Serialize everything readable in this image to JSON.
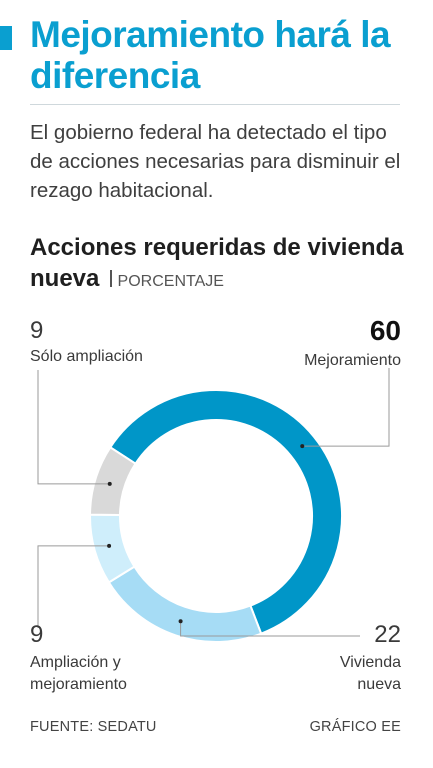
{
  "headline": "Mejoramiento hará la diferencia",
  "deck": "El gobierno federal ha detectado el tipo de acciones necesarias para disminuir el rezago habitacional.",
  "chart_title": "Acciones requeridas de vivienda nueva",
  "chart_unit": "PORCENTAJE",
  "source": "FUENTE: SEDATU",
  "credit": "GRÁFICO EE",
  "colors": {
    "accent": "#0a9fd0",
    "mejoramiento": "#0096c8",
    "vivienda_nueva": "#a6dcf5",
    "ampliacion_y_mejoramiento": "#cfeefb",
    "solo_ampliacion": "#d9d9d9"
  },
  "chart_data": {
    "type": "pie",
    "title": "Acciones requeridas de vivienda nueva",
    "unit": "PORCENTAJE",
    "slices": [
      {
        "label": "Mejoramiento",
        "value": 60,
        "color": "#0096c8"
      },
      {
        "label": "Vivienda nueva",
        "value": 22,
        "color": "#a6dcf5"
      },
      {
        "label": "Ampliación y mejoramiento",
        "value": 9,
        "color": "#cfeefb"
      },
      {
        "label": "Sólo ampliación",
        "value": 9,
        "color": "#d9d9d9"
      }
    ]
  }
}
